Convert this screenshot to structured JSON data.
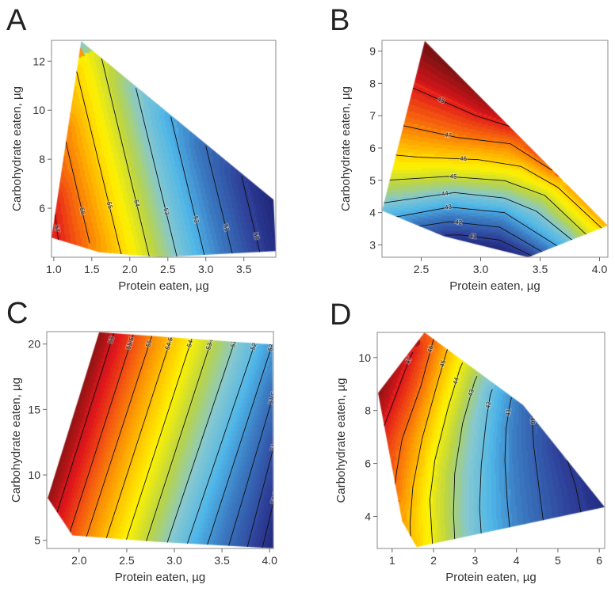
{
  "chart_data": [
    {
      "type": "contour",
      "panel": "A",
      "xlabel": "Protein eaten, µg",
      "ylabel": "Carbohydrate eaten, µg",
      "xlim": [
        0.97,
        3.92
      ],
      "ylim": [
        4.0,
        12.85
      ],
      "xticks": [
        "1.0",
        "1.5",
        "2.0",
        "2.5",
        "3.0",
        "3.5"
      ],
      "yticks": [
        "6",
        "8",
        "10",
        "12"
      ],
      "region": [
        [
          1.36,
          12.82
        ],
        [
          3.89,
          6.35
        ],
        [
          3.92,
          4.25
        ],
        [
          2.4,
          4.0
        ],
        [
          1.6,
          4.2
        ],
        [
          0.97,
          4.8
        ]
      ],
      "contours": [
        {
          "level": "57",
          "points": [
            [
              0.99,
              6.4
            ],
            [
              1.01,
              5.87
            ],
            [
              1.06,
              4.69
            ]
          ]
        },
        {
          "level": "56",
          "points": [
            [
              1.14,
              9.2
            ],
            [
              1.16,
              8.68
            ],
            [
              1.47,
              4.59
            ]
          ]
        },
        {
          "level": "55",
          "points": [
            [
              1.3,
              11.58
            ],
            [
              1.87,
              4.32
            ],
            [
              1.9,
              4.0
            ]
          ]
        },
        {
          "level": "54",
          "points": [
            [
              1.63,
              12.11
            ],
            [
              2.25,
              4.1
            ],
            [
              2.27,
              3.9
            ]
          ]
        },
        {
          "level": "53",
          "points": [
            [
              2.08,
              10.9
            ],
            [
              2.62,
              4.02
            ],
            [
              2.63,
              3.9
            ]
          ]
        },
        {
          "level": "52",
          "points": [
            [
              2.54,
              9.72
            ],
            [
              2.98,
              4.1
            ],
            [
              2.99,
              3.9
            ]
          ]
        },
        {
          "level": "51",
          "points": [
            [
              3.0,
              8.53
            ],
            [
              3.35,
              4.13
            ],
            [
              3.36,
              3.9
            ]
          ]
        },
        {
          "level": "50",
          "points": [
            [
              3.47,
              7.31
            ],
            [
              3.71,
              4.19
            ],
            [
              3.72,
              3.9
            ]
          ]
        }
      ]
    },
    {
      "type": "contour",
      "panel": "B",
      "xlabel": "Protein eaten, µg",
      "ylabel": "Carbohydrate eaten, µg",
      "xlim": [
        2.17,
        4.07
      ],
      "ylim": [
        2.62,
        9.33
      ],
      "xticks": [
        "2.5",
        "3.0",
        "3.5",
        "4.0"
      ],
      "yticks": [
        "3",
        "4",
        "5",
        "6",
        "7",
        "8",
        "9"
      ],
      "region": [
        [
          2.53,
          9.31
        ],
        [
          4.07,
          3.6
        ],
        [
          3.4,
          2.62
        ],
        [
          2.69,
          3.27
        ],
        [
          2.17,
          4.06
        ]
      ],
      "contours": [
        {
          "level": "48",
          "points": [
            [
              2.4,
              7.9
            ],
            [
              2.44,
              7.84
            ],
            [
              2.96,
              7.0
            ],
            [
              3.25,
              6.66
            ],
            [
              3.3,
              6.6
            ]
          ]
        },
        {
          "level": "47",
          "points": [
            [
              2.33,
              6.7
            ],
            [
              2.36,
              6.68
            ],
            [
              2.8,
              6.33
            ],
            [
              3.25,
              6.13
            ],
            [
              3.6,
              5.31
            ]
          ]
        },
        {
          "level": "46",
          "points": [
            [
              2.26,
              5.79
            ],
            [
              2.47,
              5.72
            ],
            [
              2.98,
              5.64
            ],
            [
              3.34,
              5.43
            ],
            [
              3.65,
              4.78
            ],
            [
              4.02,
              3.51
            ],
            [
              4.05,
              3.45
            ]
          ]
        },
        {
          "level": "45",
          "points": [
            [
              2.21,
              5.0
            ],
            [
              2.72,
              5.12
            ],
            [
              3.2,
              4.99
            ],
            [
              3.54,
              4.53
            ],
            [
              3.88,
              3.35
            ],
            [
              3.92,
              3.25
            ]
          ]
        },
        {
          "level": "44",
          "points": [
            [
              2.18,
              4.3
            ],
            [
              2.78,
              4.62
            ],
            [
              3.2,
              4.45
            ],
            [
              3.47,
              4.04
            ],
            [
              3.77,
              3.15
            ],
            [
              3.8,
              3.05
            ]
          ]
        },
        {
          "level": "43",
          "points": [
            [
              2.28,
              3.86
            ],
            [
              2.74,
              4.17
            ],
            [
              3.2,
              4.0
            ],
            [
              3.63,
              3.0
            ],
            [
              3.7,
              2.85
            ]
          ]
        },
        {
          "level": "42",
          "points": [
            [
              2.47,
              3.57
            ],
            [
              2.74,
              3.72
            ],
            [
              3.16,
              3.55
            ],
            [
              3.52,
              2.78
            ],
            [
              3.56,
              2.7
            ]
          ]
        },
        {
          "level": "41",
          "points": [
            [
              2.7,
              3.3
            ],
            [
              2.83,
              3.31
            ],
            [
              3.16,
              3.15
            ],
            [
              3.43,
              2.66
            ],
            [
              3.45,
              2.6
            ]
          ]
        }
      ]
    },
    {
      "type": "contour",
      "panel": "C",
      "xlabel": "Protein eaten, µg",
      "ylabel": "Carbohydrate eaten, µg",
      "xlim": [
        1.66,
        4.04
      ],
      "ylim": [
        4.38,
        20.95
      ],
      "xticks": [
        "2.0",
        "2.5",
        "3.0",
        "3.5",
        "4.0"
      ],
      "yticks": [
        "5",
        "10",
        "15",
        "20"
      ],
      "region": [
        [
          2.21,
          20.9
        ],
        [
          4.03,
          19.96
        ],
        [
          4.04,
          4.4
        ],
        [
          2.83,
          4.88
        ],
        [
          1.93,
          5.38
        ],
        [
          1.67,
          8.24
        ]
      ],
      "contours": [
        {
          "level": "56",
          "points": [
            [
              2.38,
              21.2
            ],
            [
              1.74,
              6.5
            ]
          ]
        },
        {
          "level": "55.5",
          "points": [
            [
              2.58,
              21.0
            ],
            [
              1.88,
              5.1
            ]
          ]
        },
        {
          "level": "55",
          "points": [
            [
              2.78,
              21.0
            ],
            [
              2.06,
              4.9
            ]
          ]
        },
        {
          "level": "54.5",
          "points": [
            [
              2.99,
              21.0
            ],
            [
              2.27,
              4.8
            ]
          ]
        },
        {
          "level": "54",
          "points": [
            [
              3.21,
              21.0
            ],
            [
              2.48,
              4.7
            ]
          ]
        },
        {
          "level": "53.5",
          "points": [
            [
              3.42,
              21.0
            ],
            [
              2.69,
              4.6
            ]
          ]
        },
        {
          "level": "53",
          "points": [
            [
              3.67,
              21.0
            ],
            [
              2.91,
              4.5
            ]
          ]
        },
        {
          "level": "52.5",
          "points": [
            [
              3.89,
              21.0
            ],
            [
              3.12,
              4.4
            ]
          ]
        },
        {
          "level": "52",
          "points": [
            [
              4.06,
              20.7
            ],
            [
              3.33,
              4.3
            ]
          ]
        },
        {
          "level": "51.5",
          "points": [
            [
              4.06,
              16.6
            ],
            [
              3.56,
              4.3
            ]
          ]
        },
        {
          "level": "51",
          "points": [
            [
              4.06,
              12.6
            ],
            [
              3.76,
              4.3
            ]
          ]
        },
        {
          "level": "50.5",
          "points": [
            [
              4.06,
              8.5
            ],
            [
              3.92,
              4.3
            ]
          ]
        }
      ]
    },
    {
      "type": "contour",
      "panel": "D",
      "xlabel": "Protein eaten, µg",
      "ylabel": "Carbohydrate eaten, µg",
      "xlim": [
        0.64,
        6.13
      ],
      "ylim": [
        2.79,
        10.95
      ],
      "xticks": [
        "1",
        "2",
        "3",
        "4",
        "5",
        "6"
      ],
      "yticks": [
        "4",
        "6",
        "8",
        "10"
      ],
      "region": [
        [
          1.78,
          10.95
        ],
        [
          4.16,
          8.21
        ],
        [
          6.13,
          4.35
        ],
        [
          1.59,
          2.84
        ],
        [
          1.24,
          3.83
        ],
        [
          0.66,
          8.66
        ]
      ],
      "contours": [
        {
          "level": "47",
          "points": [
            [
              1.5,
              10.2
            ],
            [
              1.43,
              10.0
            ],
            [
              0.83,
              7.51
            ],
            [
              0.69,
              7.0
            ]
          ]
        },
        {
          "level": "46",
          "points": [
            [
              2.05,
              10.9
            ],
            [
              2.0,
              10.7
            ],
            [
              1.69,
              8.91
            ],
            [
              1.24,
              6.92
            ],
            [
              1.11,
              5.72
            ],
            [
              1.05,
              5.0
            ]
          ]
        },
        {
          "level": "45",
          "points": [
            [
              2.38,
              10.5
            ],
            [
              2.32,
              10.25
            ],
            [
              2.07,
              8.91
            ],
            [
              1.72,
              6.92
            ],
            [
              1.5,
              5.13
            ],
            [
              1.43,
              3.73
            ],
            [
              1.45,
              3.0
            ]
          ]
        },
        {
          "level": "44",
          "points": [
            [
              2.7,
              9.8
            ],
            [
              2.64,
              9.6
            ],
            [
              2.35,
              8.11
            ],
            [
              2.03,
              6.12
            ],
            [
              1.91,
              4.63
            ],
            [
              1.97,
              3.04
            ],
            [
              1.99,
              2.7
            ]
          ]
        },
        {
          "level": "43",
          "points": [
            [
              3.05,
              9.3
            ],
            [
              2.99,
              9.1
            ],
            [
              2.7,
              7.51
            ],
            [
              2.51,
              5.62
            ],
            [
              2.48,
              4.13
            ],
            [
              2.51,
              3.13
            ],
            [
              2.52,
              2.7
            ]
          ]
        },
        {
          "level": "42",
          "points": [
            [
              3.42,
              8.8
            ],
            [
              3.37,
              8.61
            ],
            [
              3.27,
              7.61
            ],
            [
              3.15,
              5.92
            ],
            [
              3.11,
              4.33
            ],
            [
              3.15,
              3.33
            ],
            [
              3.16,
              2.7
            ]
          ]
        },
        {
          "level": "41",
          "points": [
            [
              3.88,
              8.5
            ],
            [
              3.84,
              8.21
            ],
            [
              3.75,
              7.31
            ],
            [
              3.72,
              6.12
            ],
            [
              3.78,
              4.53
            ],
            [
              3.84,
              3.53
            ],
            [
              3.87,
              2.7
            ]
          ]
        },
        {
          "level": "40",
          "points": [
            [
              4.36,
              8.1
            ],
            [
              4.38,
              7.66
            ],
            [
              4.42,
              6.62
            ],
            [
              4.54,
              5.13
            ],
            [
              4.64,
              3.93
            ],
            [
              4.7,
              3.2
            ]
          ]
        },
        {
          "level": "39",
          "points": [
            [
              5.15,
              6.6
            ],
            [
              5.27,
              5.92
            ],
            [
              5.43,
              5.13
            ],
            [
              5.56,
              4.13
            ],
            [
              5.62,
              3.5
            ]
          ]
        }
      ]
    }
  ],
  "colormap": [
    "#1f2377",
    "#2e3f98",
    "#3a78c0",
    "#4fb6e8",
    "#86c8cf",
    "#b9d447",
    "#fff200",
    "#ffab00",
    "#f45a10",
    "#e0161b",
    "#7d1212"
  ]
}
